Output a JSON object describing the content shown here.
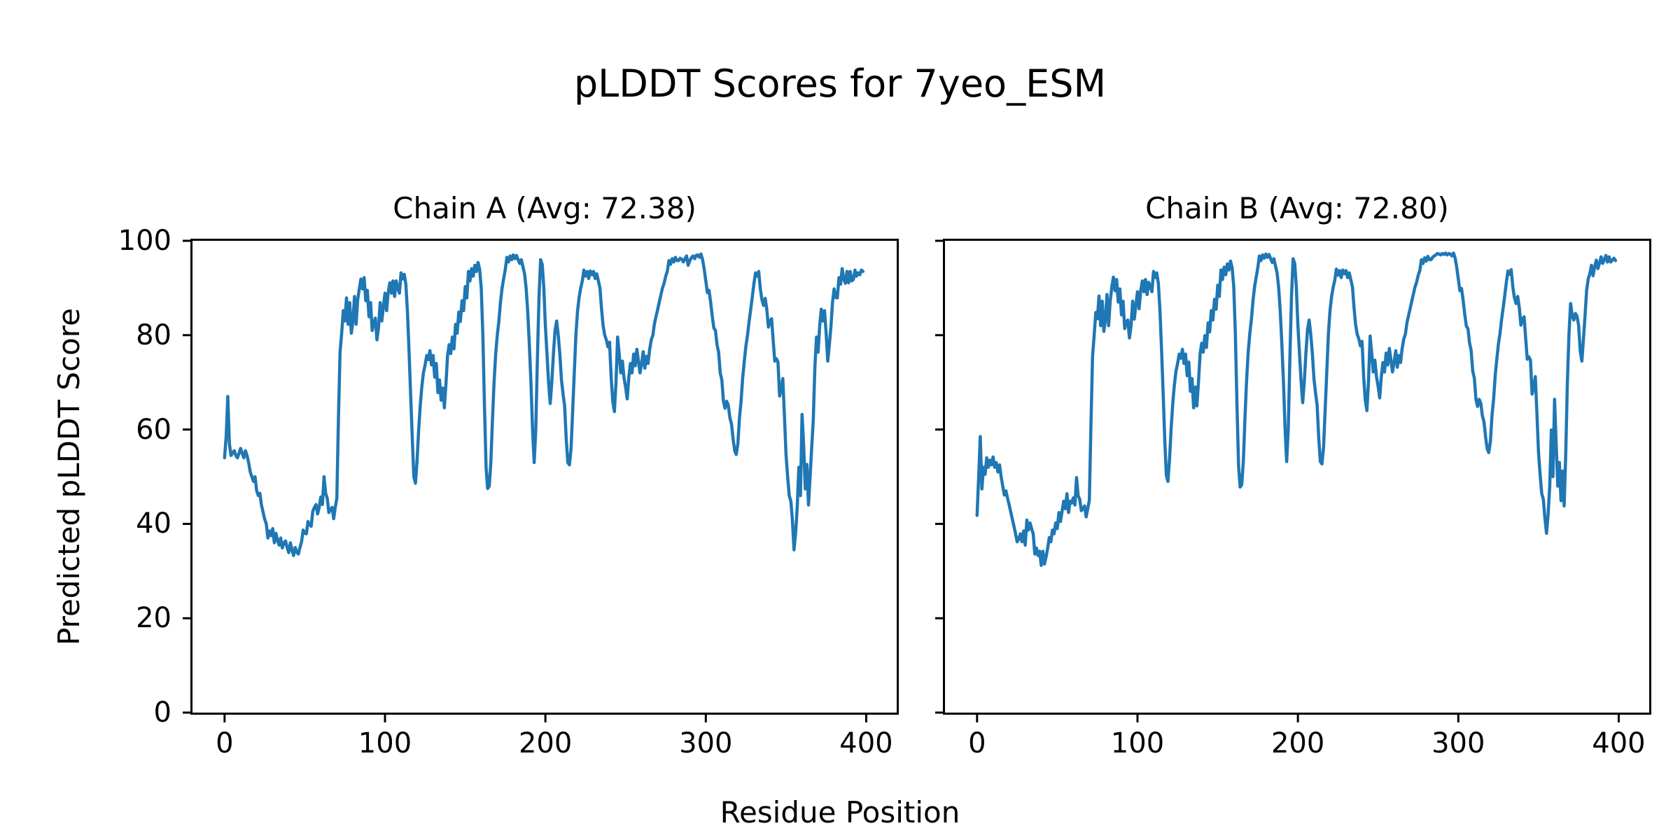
{
  "figure": {
    "title": "pLDDT Scores for 7yeo_ESM",
    "xlabel": "Residue Position",
    "ylabel": "Predicted pLDDT Score",
    "line_color": "#1f77b4",
    "background_color": "#ffffff",
    "text_color": "#000000"
  },
  "chart_data": [
    {
      "type": "line",
      "title": "Chain A (Avg: 72.38)",
      "chain": "A",
      "avg": 72.38,
      "xlim": [
        -20,
        419
      ],
      "ylim": [
        0,
        100
      ],
      "xticks": [
        0,
        100,
        200,
        300,
        400
      ],
      "yticks": [
        0,
        20,
        40,
        60,
        80,
        100
      ],
      "show_ytick_labels": true,
      "grid": false,
      "legend": "none",
      "series": [
        {
          "name": "Chain A pLDDT",
          "color": "#1f77b4",
          "x_start": 0,
          "x_step": 1,
          "values": [
            54.0,
            58.5,
            67.0,
            57.0,
            54.5,
            55.0,
            55.5,
            54.5,
            54.0,
            55.0,
            56.0,
            55.0,
            54.0,
            55.5,
            54.5,
            53.0,
            51.0,
            50.0,
            49.0,
            50.0,
            47.0,
            46.0,
            46.5,
            44.0,
            42.5,
            41.0,
            40.0,
            37.0,
            38.5,
            37.5,
            39.0,
            36.0,
            38.0,
            36.5,
            35.5,
            37.0,
            34.9,
            36.0,
            36.4,
            35.0,
            33.9,
            36.0,
            34.5,
            33.3,
            35.0,
            34.0,
            33.6,
            35.0,
            36.2,
            38.7,
            38.0,
            37.9,
            40.5,
            39.8,
            39.5,
            42.7,
            43.5,
            44.1,
            42.1,
            43.5,
            45.7,
            44.1,
            50.0,
            46.5,
            45.4,
            42.4,
            43.0,
            43.5,
            41.1,
            43.5,
            45.4,
            62.5,
            76.4,
            80.4,
            85.2,
            83.0,
            87.9,
            82.3,
            86.9,
            80.4,
            83.0,
            88.2,
            82.3,
            87.6,
            89.8,
            91.9,
            89.8,
            92.2,
            87.3,
            89.5,
            83.9,
            86.9,
            81.0,
            82.5,
            83.6,
            79.0,
            81.7,
            86.9,
            83.0,
            86.0,
            88.9,
            85.2,
            89.0,
            91.1,
            88.9,
            91.5,
            88.2,
            91.5,
            90.0,
            88.9,
            93.2,
            91.9,
            92.9,
            90.8,
            84.9,
            76.4,
            67.1,
            58.5,
            50.0,
            48.6,
            53.4,
            59.9,
            65.2,
            69.2,
            72.1,
            73.7,
            75.7,
            74.8,
            76.7,
            73.7,
            75.7,
            71.1,
            74.0,
            67.8,
            70.5,
            66.2,
            68.8,
            64.6,
            69.7,
            75.7,
            78.0,
            76.1,
            79.6,
            77.1,
            82.3,
            80.4,
            84.9,
            82.9,
            87.3,
            85.2,
            90.3,
            87.9,
            93.5,
            91.5,
            94.1,
            92.5,
            94.8,
            93.5,
            95.4,
            94.0,
            90.0,
            80.0,
            65.0,
            52.0,
            47.5,
            48.0,
            53.0,
            62.0,
            70.0,
            76.0,
            80.0,
            83.0,
            87.0,
            90.0,
            92.0,
            94.0,
            96.5,
            95.5,
            96.8,
            96.0,
            97.0,
            96.2,
            96.9,
            96.0,
            95.2,
            96.0,
            94.5,
            93.0,
            90.0,
            85.0,
            78.0,
            70.0,
            60.0,
            53.0,
            60.0,
            75.0,
            88.0,
            96.0,
            95.0,
            90.0,
            82.0,
            76.0,
            70.0,
            65.5,
            70.0,
            76.0,
            81.0,
            83.0,
            80.0,
            76.0,
            70.5,
            67.5,
            65.0,
            58.0,
            53.0,
            52.5,
            56.0,
            64.0,
            72.0,
            80.0,
            85.0,
            88.0,
            90.0,
            91.5,
            93.8,
            92.5,
            93.5,
            92.0,
            93.6,
            92.8,
            93.5,
            92.0,
            93.0,
            91.5,
            90.0,
            85.5,
            82.0,
            80.0,
            79.0,
            77.5,
            78.5,
            71.0,
            66.0,
            63.8,
            70.0,
            79.6,
            76.0,
            72.0,
            74.5,
            71.0,
            69.0,
            66.5,
            71.0,
            74.0,
            72.0,
            76.0,
            73.5,
            77.0,
            74.5,
            72.0,
            74.0,
            76.5,
            73.0,
            75.5,
            74.0,
            77.0,
            79.0,
            80.0,
            82.5,
            84.0,
            85.5,
            87.0,
            88.5,
            90.0,
            91.0,
            92.5,
            93.5,
            95.8,
            95.0,
            96.2,
            95.5,
            96.5,
            95.8,
            95.8,
            96.3,
            96.1,
            95.5,
            96.2,
            96.8,
            94.8,
            95.8,
            96.4,
            96.8,
            96.2,
            96.9,
            97.0,
            96.5,
            97.2,
            96.0,
            94.0,
            91.5,
            89.0,
            89.5,
            87.0,
            84.0,
            81.5,
            81.0,
            78.0,
            76.4,
            72.0,
            70.5,
            66.0,
            64.5,
            66.0,
            65.2,
            62.5,
            61.2,
            58.0,
            55.5,
            54.7,
            57.0,
            62.5,
            66.0,
            71.0,
            74.5,
            77.7,
            80.0,
            83.0,
            85.5,
            88.2,
            91.0,
            93.2,
            92.5,
            93.5,
            89.8,
            87.5,
            86.3,
            87.8,
            85.5,
            81.7,
            83.0,
            83.5,
            79.0,
            74.5,
            75.0,
            74.3,
            67.1,
            68.5,
            70.8,
            63.0,
            54.7,
            50.0,
            46.0,
            44.8,
            40.8,
            34.5,
            38.0,
            43.5,
            52.0,
            46.0,
            63.2,
            56.6,
            47.4,
            52.6,
            44.0,
            50.0,
            56.0,
            62.0,
            73.1,
            79.6,
            76.4,
            82.0,
            85.5,
            83.0,
            85.2,
            80.4,
            74.5,
            78.0,
            81.7,
            86.9,
            89.8,
            88.0,
            87.9,
            92.2,
            90.8,
            94.1,
            91.9,
            91.0,
            93.5,
            91.1,
            93.5,
            91.5,
            91.8,
            93.8,
            92.5,
            93.2,
            92.8,
            93.8,
            93.5
          ]
        }
      ]
    },
    {
      "type": "line",
      "title": "Chain B (Avg: 72.80)",
      "chain": "B",
      "avg": 72.8,
      "xlim": [
        -20,
        419
      ],
      "ylim": [
        0,
        100
      ],
      "xticks": [
        0,
        100,
        200,
        300,
        400
      ],
      "yticks": [
        0,
        20,
        40,
        60,
        80,
        100
      ],
      "show_ytick_labels": false,
      "grid": false,
      "legend": "none",
      "series": [
        {
          "name": "Chain B pLDDT",
          "color": "#1f77b4",
          "x_start": 0,
          "x_step": 1,
          "values": [
            41.8,
            50.0,
            58.5,
            47.4,
            52.0,
            50.5,
            54.0,
            52.0,
            53.5,
            52.5,
            54.2,
            52.0,
            53.0,
            51.0,
            52.5,
            50.0,
            48.0,
            46.1,
            47.0,
            45.4,
            44.0,
            42.5,
            41.0,
            39.5,
            37.9,
            36.2,
            36.8,
            37.9,
            36.2,
            38.5,
            35.5,
            40.8,
            38.7,
            40.2,
            39.0,
            37.9,
            33.6,
            34.9,
            33.3,
            34.2,
            31.2,
            34.2,
            31.5,
            33.0,
            34.9,
            37.1,
            36.2,
            38.7,
            37.9,
            40.2,
            39.0,
            42.4,
            40.5,
            42.7,
            44.8,
            43.2,
            46.4,
            42.4,
            44.8,
            44.4,
            45.5,
            44.0,
            49.8,
            46.0,
            45.2,
            42.8,
            43.2,
            43.8,
            41.5,
            43.2,
            45.0,
            61.0,
            75.5,
            80.0,
            84.8,
            83.5,
            88.3,
            82.0,
            87.2,
            80.8,
            83.4,
            88.6,
            82.0,
            87.2,
            90.2,
            92.3,
            89.4,
            91.8,
            87.0,
            89.8,
            84.3,
            87.2,
            81.4,
            82.8,
            83.2,
            79.4,
            82.0,
            87.2,
            83.4,
            86.4,
            89.2,
            85.6,
            89.4,
            91.5,
            89.2,
            91.8,
            88.6,
            91.2,
            90.3,
            89.2,
            93.5,
            92.2,
            93.2,
            91.0,
            85.2,
            76.8,
            67.5,
            58.0,
            50.3,
            49.0,
            53.8,
            60.3,
            65.6,
            69.5,
            72.4,
            74.0,
            76.0,
            75.1,
            77.0,
            74.0,
            76.0,
            71.4,
            74.3,
            68.1,
            70.8,
            64.6,
            69.0,
            65.0,
            70.0,
            76.0,
            78.3,
            76.4,
            79.9,
            77.4,
            82.6,
            80.7,
            85.2,
            83.2,
            87.6,
            85.5,
            90.6,
            88.2,
            93.8,
            91.8,
            94.4,
            92.8,
            95.1,
            93.8,
            95.7,
            94.3,
            90.3,
            80.3,
            65.3,
            52.3,
            47.8,
            48.3,
            53.3,
            62.3,
            70.3,
            76.3,
            80.3,
            83.3,
            87.3,
            90.3,
            92.3,
            94.3,
            96.8,
            95.8,
            97.0,
            96.3,
            97.2,
            96.5,
            97.1,
            96.2,
            95.4,
            96.2,
            94.7,
            93.2,
            90.2,
            85.2,
            78.2,
            70.2,
            60.2,
            53.2,
            60.2,
            75.2,
            88.2,
            96.2,
            95.2,
            90.2,
            82.2,
            76.2,
            70.2,
            65.7,
            70.2,
            76.2,
            81.2,
            83.2,
            80.2,
            76.2,
            70.7,
            67.7,
            65.2,
            58.2,
            53.2,
            52.7,
            56.2,
            64.2,
            72.2,
            80.2,
            85.2,
            88.2,
            90.2,
            91.7,
            94.0,
            92.7,
            93.7,
            92.2,
            93.8,
            93.0,
            93.7,
            92.2,
            93.2,
            91.7,
            90.2,
            85.7,
            82.2,
            80.2,
            79.2,
            77.7,
            78.7,
            71.2,
            66.2,
            64.0,
            70.2,
            79.8,
            76.2,
            72.2,
            74.7,
            71.2,
            69.2,
            66.7,
            71.2,
            74.2,
            72.2,
            76.2,
            73.7,
            77.2,
            74.7,
            72.2,
            74.2,
            76.7,
            73.2,
            75.7,
            74.2,
            77.2,
            79.2,
            80.2,
            82.7,
            84.2,
            85.7,
            87.2,
            88.7,
            90.2,
            91.2,
            92.7,
            93.7,
            96.0,
            95.2,
            96.4,
            95.7,
            96.7,
            96.0,
            96.0,
            96.5,
            96.8,
            97.0,
            97.3,
            97.2,
            97.0,
            97.3,
            97.1,
            97.4,
            97.0,
            97.3,
            97.2,
            96.8,
            97.4,
            96.4,
            94.4,
            91.9,
            89.4,
            89.9,
            87.4,
            84.4,
            81.9,
            81.4,
            78.4,
            76.8,
            72.4,
            70.9,
            66.4,
            64.9,
            66.4,
            65.6,
            62.9,
            61.6,
            58.4,
            55.9,
            55.1,
            57.4,
            62.9,
            66.4,
            71.4,
            74.9,
            78.1,
            80.4,
            83.4,
            85.9,
            88.6,
            91.4,
            93.6,
            92.9,
            93.9,
            90.2,
            87.9,
            86.7,
            88.2,
            85.9,
            82.1,
            83.4,
            83.9,
            79.4,
            74.9,
            75.4,
            74.7,
            67.5,
            68.9,
            71.2,
            63.4,
            55.1,
            50.4,
            46.4,
            45.2,
            41.2,
            38.0,
            42.0,
            48.0,
            59.9,
            50.0,
            66.4,
            57.0,
            48.0,
            53.0,
            44.9,
            51.2,
            43.8,
            55.0,
            70.0,
            80.2,
            86.7,
            84.2,
            83.2,
            84.6,
            84.0,
            82.0,
            76.6,
            74.5,
            79.0,
            84.0,
            89.5,
            91.9,
            93.0,
            94.8,
            92.6,
            94.5,
            95.9,
            94.1,
            95.3,
            96.6,
            95.2,
            96.0,
            96.9,
            95.5,
            96.6,
            95.5,
            95.9,
            96.3,
            95.8
          ]
        }
      ]
    }
  ]
}
